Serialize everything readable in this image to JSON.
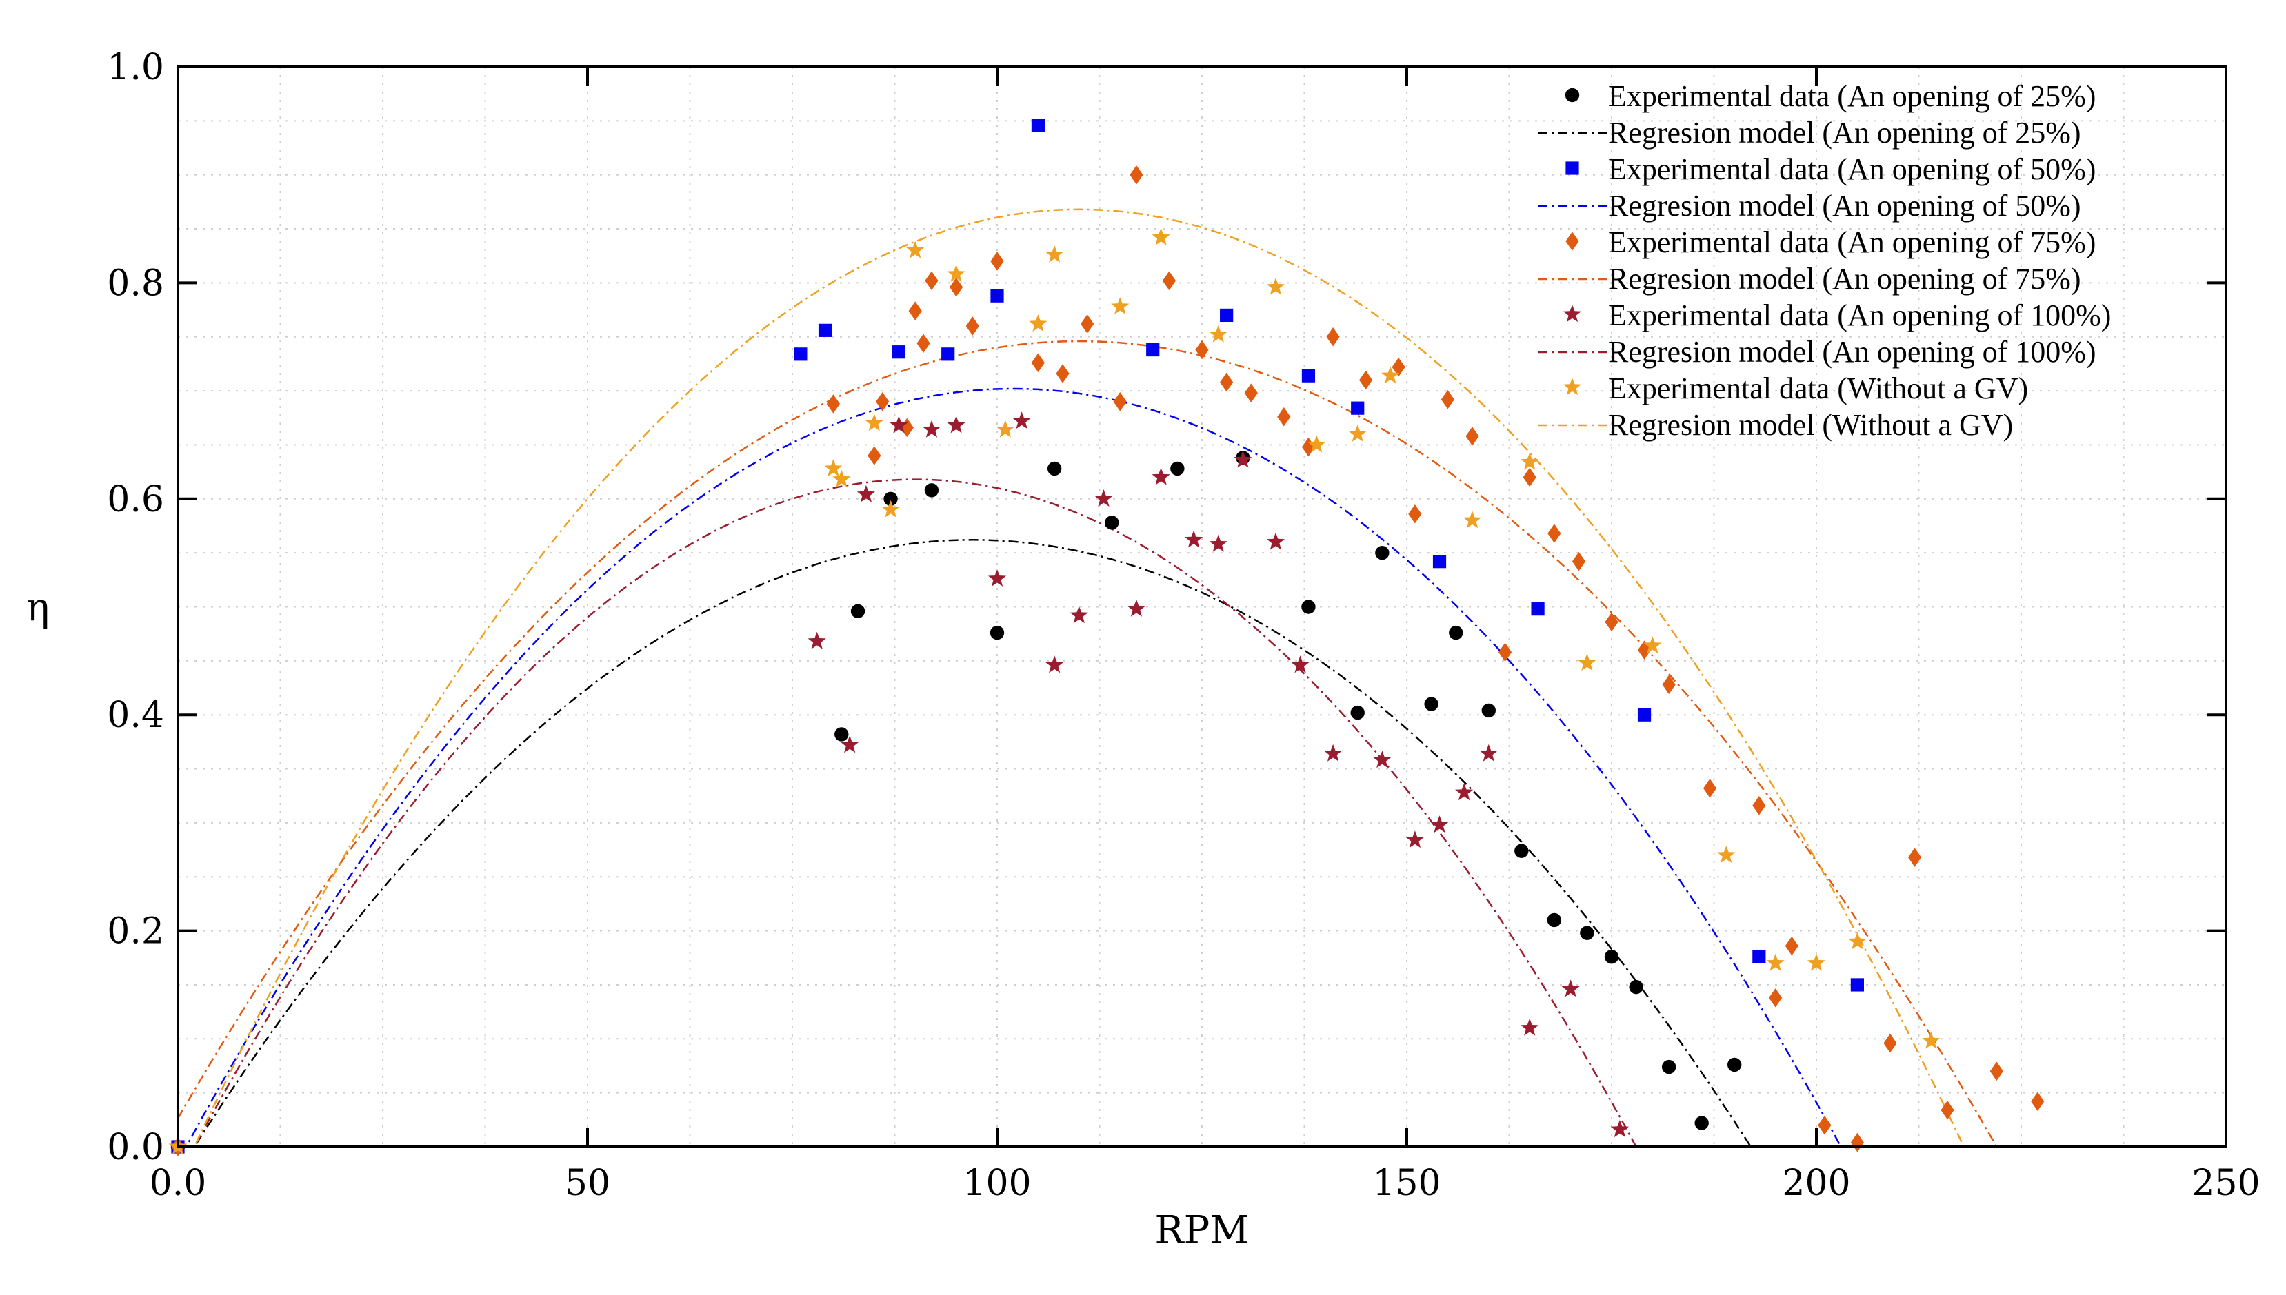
{
  "chart_data": {
    "type": "scatter",
    "xlabel": "RPM",
    "ylabel": "η",
    "xlim": [
      0,
      250
    ],
    "ylim": [
      0,
      1.0
    ],
    "xticks": [
      0,
      50,
      100,
      150,
      200,
      250
    ],
    "xtick_labels": [
      "0.0",
      "50",
      "100",
      "150",
      "200",
      "250"
    ],
    "yticks": [
      0,
      0.2,
      0.4,
      0.6,
      0.8,
      1.0
    ],
    "ytick_labels": [
      "0.0",
      "0.2",
      "0.4",
      "0.6",
      "0.8",
      "1.0"
    ],
    "grid": "dotted",
    "legend_position": "top-right",
    "series": [
      {
        "name": "Experimental data (An opening of 25%)",
        "kind": "points",
        "marker": "circle",
        "color": "#000000",
        "points": [
          [
            0,
            0
          ],
          [
            81,
            0.382
          ],
          [
            83,
            0.496
          ],
          [
            87,
            0.6
          ],
          [
            92,
            0.608
          ],
          [
            100,
            0.476
          ],
          [
            107,
            0.628
          ],
          [
            114,
            0.578
          ],
          [
            122,
            0.628
          ],
          [
            130,
            0.638
          ],
          [
            138,
            0.5
          ],
          [
            144,
            0.402
          ],
          [
            147,
            0.55
          ],
          [
            153,
            0.41
          ],
          [
            156,
            0.476
          ],
          [
            160,
            0.404
          ],
          [
            164,
            0.274
          ],
          [
            168,
            0.21
          ],
          [
            172,
            0.198
          ],
          [
            175,
            0.176
          ],
          [
            178,
            0.148
          ],
          [
            182,
            0.074
          ],
          [
            186,
            0.022
          ],
          [
            190,
            0.076
          ]
        ]
      },
      {
        "name": "Regresion model (An opening of 25%)",
        "kind": "curve",
        "color": "#000000",
        "vertex_x": 97,
        "peak": 0.562,
        "root": 192
      },
      {
        "name": "Experimental data (An opening of 50%)",
        "kind": "points",
        "marker": "square",
        "color": "#0000ee",
        "points": [
          [
            0,
            0
          ],
          [
            76,
            0.734
          ],
          [
            79,
            0.756
          ],
          [
            88,
            0.736
          ],
          [
            94,
            0.734
          ],
          [
            100,
            0.788
          ],
          [
            105,
            0.946
          ],
          [
            119,
            0.738
          ],
          [
            128,
            0.77
          ],
          [
            138,
            0.714
          ],
          [
            144,
            0.684
          ],
          [
            154,
            0.542
          ],
          [
            166,
            0.498
          ],
          [
            179,
            0.4
          ],
          [
            193,
            0.176
          ],
          [
            205,
            0.15
          ]
        ]
      },
      {
        "name": "Regresion model (An opening of 50%)",
        "kind": "curve",
        "color": "#0000ee",
        "vertex_x": 102,
        "peak": 0.702,
        "root": 203
      },
      {
        "name": "Experimental data (An opening of 75%)",
        "kind": "points",
        "marker": "diamond",
        "color": "#e05a10",
        "points": [
          [
            0,
            0
          ],
          [
            80,
            0.688
          ],
          [
            85,
            0.64
          ],
          [
            86,
            0.69
          ],
          [
            89,
            0.666
          ],
          [
            90,
            0.774
          ],
          [
            91,
            0.744
          ],
          [
            92,
            0.802
          ],
          [
            95,
            0.796
          ],
          [
            97,
            0.76
          ],
          [
            100,
            0.82
          ],
          [
            105,
            0.726
          ],
          [
            108,
            0.716
          ],
          [
            111,
            0.762
          ],
          [
            115,
            0.69
          ],
          [
            117,
            0.9
          ],
          [
            121,
            0.802
          ],
          [
            125,
            0.738
          ],
          [
            128,
            0.708
          ],
          [
            131,
            0.698
          ],
          [
            135,
            0.676
          ],
          [
            138,
            0.648
          ],
          [
            141,
            0.75
          ],
          [
            145,
            0.71
          ],
          [
            149,
            0.722
          ],
          [
            151,
            0.586
          ],
          [
            155,
            0.692
          ],
          [
            158,
            0.658
          ],
          [
            162,
            0.458
          ],
          [
            165,
            0.62
          ],
          [
            168,
            0.568
          ],
          [
            171,
            0.542
          ],
          [
            175,
            0.486
          ],
          [
            179,
            0.46
          ],
          [
            182,
            0.428
          ],
          [
            187,
            0.332
          ],
          [
            193,
            0.316
          ],
          [
            195,
            0.138
          ],
          [
            197,
            0.186
          ],
          [
            201,
            0.02
          ],
          [
            205,
            0.004
          ],
          [
            209,
            0.096
          ],
          [
            212,
            0.268
          ],
          [
            216,
            0.034
          ],
          [
            222,
            0.07
          ],
          [
            227,
            0.042
          ]
        ]
      },
      {
        "name": "Regresion model (An opening of 75%)",
        "kind": "curve",
        "color": "#e05a10",
        "vertex_x": 110,
        "peak": 0.746,
        "root": 222
      },
      {
        "name": "Experimental data (An opening of 100%)",
        "kind": "points",
        "marker": "star",
        "color": "#9b1c2e",
        "points": [
          [
            0,
            0
          ],
          [
            78,
            0.468
          ],
          [
            82,
            0.372
          ],
          [
            84,
            0.604
          ],
          [
            88,
            0.668
          ],
          [
            92,
            0.664
          ],
          [
            95,
            0.668
          ],
          [
            100,
            0.526
          ],
          [
            103,
            0.672
          ],
          [
            107,
            0.446
          ],
          [
            110,
            0.492
          ],
          [
            113,
            0.6
          ],
          [
            117,
            0.498
          ],
          [
            120,
            0.62
          ],
          [
            124,
            0.562
          ],
          [
            127,
            0.558
          ],
          [
            130,
            0.636
          ],
          [
            134,
            0.56
          ],
          [
            137,
            0.446
          ],
          [
            141,
            0.364
          ],
          [
            147,
            0.358
          ],
          [
            151,
            0.284
          ],
          [
            154,
            0.298
          ],
          [
            157,
            0.328
          ],
          [
            160,
            0.364
          ],
          [
            165,
            0.11
          ],
          [
            170,
            0.146
          ],
          [
            176,
            0.016
          ]
        ]
      },
      {
        "name": "Regresion model (An opening of 100%)",
        "kind": "curve",
        "color": "#9b1c2e",
        "vertex_x": 90,
        "peak": 0.618,
        "root": 178
      },
      {
        "name": "Experimental data (Without a GV)",
        "kind": "points",
        "marker": "star",
        "color": "#f0a020",
        "points": [
          [
            0,
            0
          ],
          [
            80,
            0.628
          ],
          [
            81,
            0.618
          ],
          [
            85,
            0.67
          ],
          [
            87,
            0.59
          ],
          [
            90,
            0.83
          ],
          [
            95,
            0.808
          ],
          [
            101,
            0.664
          ],
          [
            105,
            0.762
          ],
          [
            107,
            0.826
          ],
          [
            115,
            0.778
          ],
          [
            120,
            0.842
          ],
          [
            127,
            0.752
          ],
          [
            134,
            0.796
          ],
          [
            139,
            0.65
          ],
          [
            144,
            0.66
          ],
          [
            148,
            0.714
          ],
          [
            158,
            0.58
          ],
          [
            165,
            0.634
          ],
          [
            172,
            0.448
          ],
          [
            180,
            0.464
          ],
          [
            189,
            0.27
          ],
          [
            195,
            0.17
          ],
          [
            200,
            0.17
          ],
          [
            205,
            0.19
          ],
          [
            214,
            0.098
          ]
        ]
      },
      {
        "name": "Regresion model (Without a GV)",
        "kind": "curve",
        "color": "#f0a020",
        "vertex_x": 110,
        "peak": 0.868,
        "root": 218
      }
    ]
  }
}
